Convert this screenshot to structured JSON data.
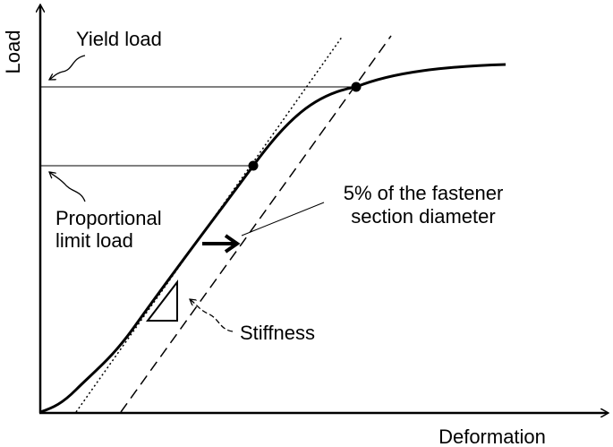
{
  "axes": {
    "y_label": "Load",
    "x_label": "Deformation"
  },
  "annotations": {
    "yield_load": "Yield load",
    "proportional_limit_load": [
      "Proportional",
      "limit load"
    ],
    "offset": [
      "5% of the fastener",
      "section diameter"
    ],
    "stiffness": "Stiffness"
  }
}
